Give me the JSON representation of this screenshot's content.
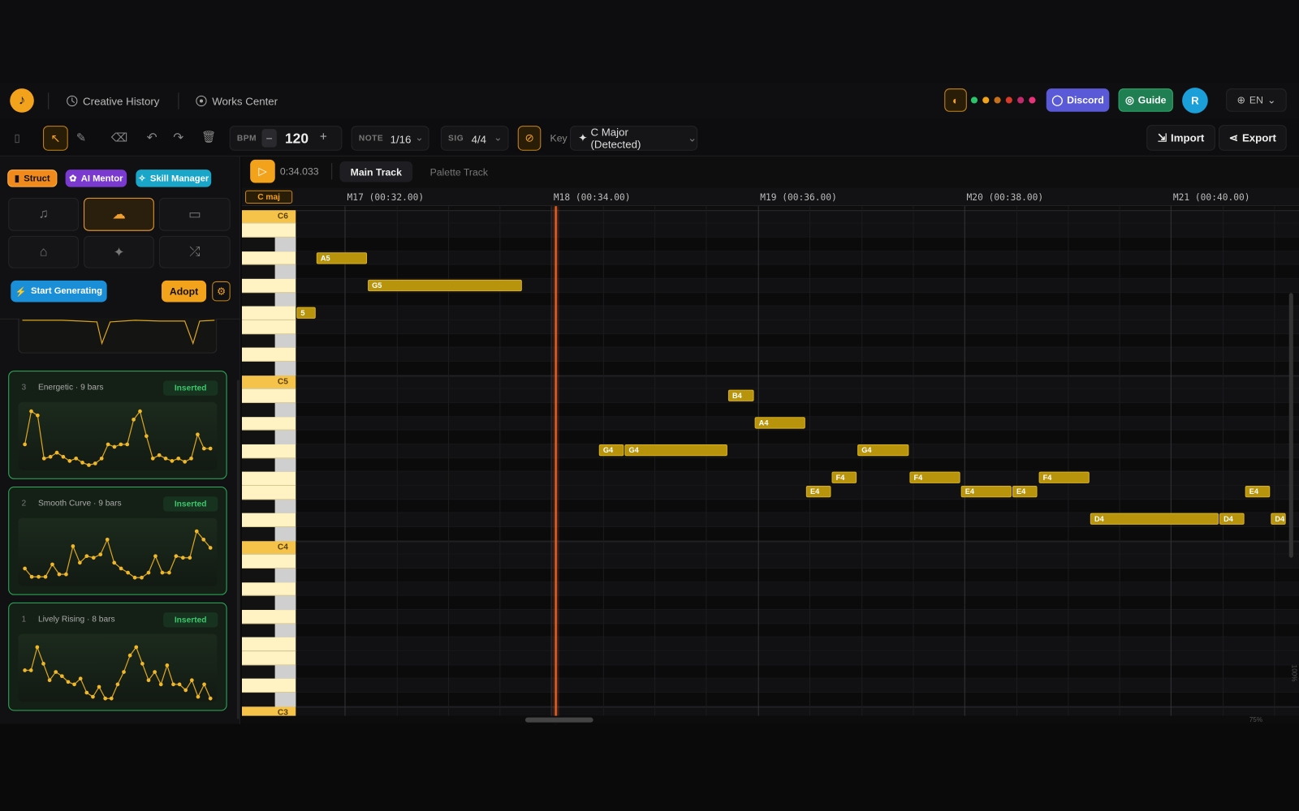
{
  "header": {
    "nav": [
      "Creative History",
      "Works Center"
    ],
    "discord": "Discord",
    "guide": "Guide",
    "avatar": "R",
    "language": "EN"
  },
  "toolbar": {
    "bpm_label": "BPM",
    "bpm": "120",
    "note_label": "NOTE",
    "note": "1/16",
    "sig_label": "SIG",
    "sig": "4/4",
    "key_label": "Key",
    "key": "C Major (Detected)",
    "import": "Import",
    "export": "Export"
  },
  "sidebar": {
    "tabs": [
      "Struct",
      "AI Mentor",
      "Skill Manager"
    ],
    "generate": "Start Generating",
    "adopt": "Adopt",
    "results": [
      {
        "index": "3",
        "title": "Energetic · 9 bars",
        "status": "Inserted"
      },
      {
        "index": "2",
        "title": "Smooth Curve · 9 bars",
        "status": "Inserted"
      },
      {
        "index": "1",
        "title": "Lively Rising · 8 bars",
        "status": "Inserted"
      }
    ]
  },
  "editor": {
    "time": "0:34.033",
    "tracks": [
      "Main Track",
      "Palette Track"
    ],
    "scale": "C maj",
    "measures": [
      "M17 (00:32.00)",
      "M18 (00:34.00)",
      "M19 (00:36.00)",
      "M20 (00:38.00)",
      "M21 (00:40.00)"
    ],
    "octaves": [
      "C6",
      "C5",
      "C4",
      "C3"
    ],
    "notes": [
      "A5",
      "G5",
      "5",
      "B4",
      "A4",
      "G4",
      "G4",
      "G4",
      "F4",
      "F4",
      "F4",
      "E4",
      "E4",
      "E4",
      "E4",
      "D4",
      "D4",
      "D4"
    ],
    "zoom": "100%",
    "zoom_level": "75%"
  }
}
